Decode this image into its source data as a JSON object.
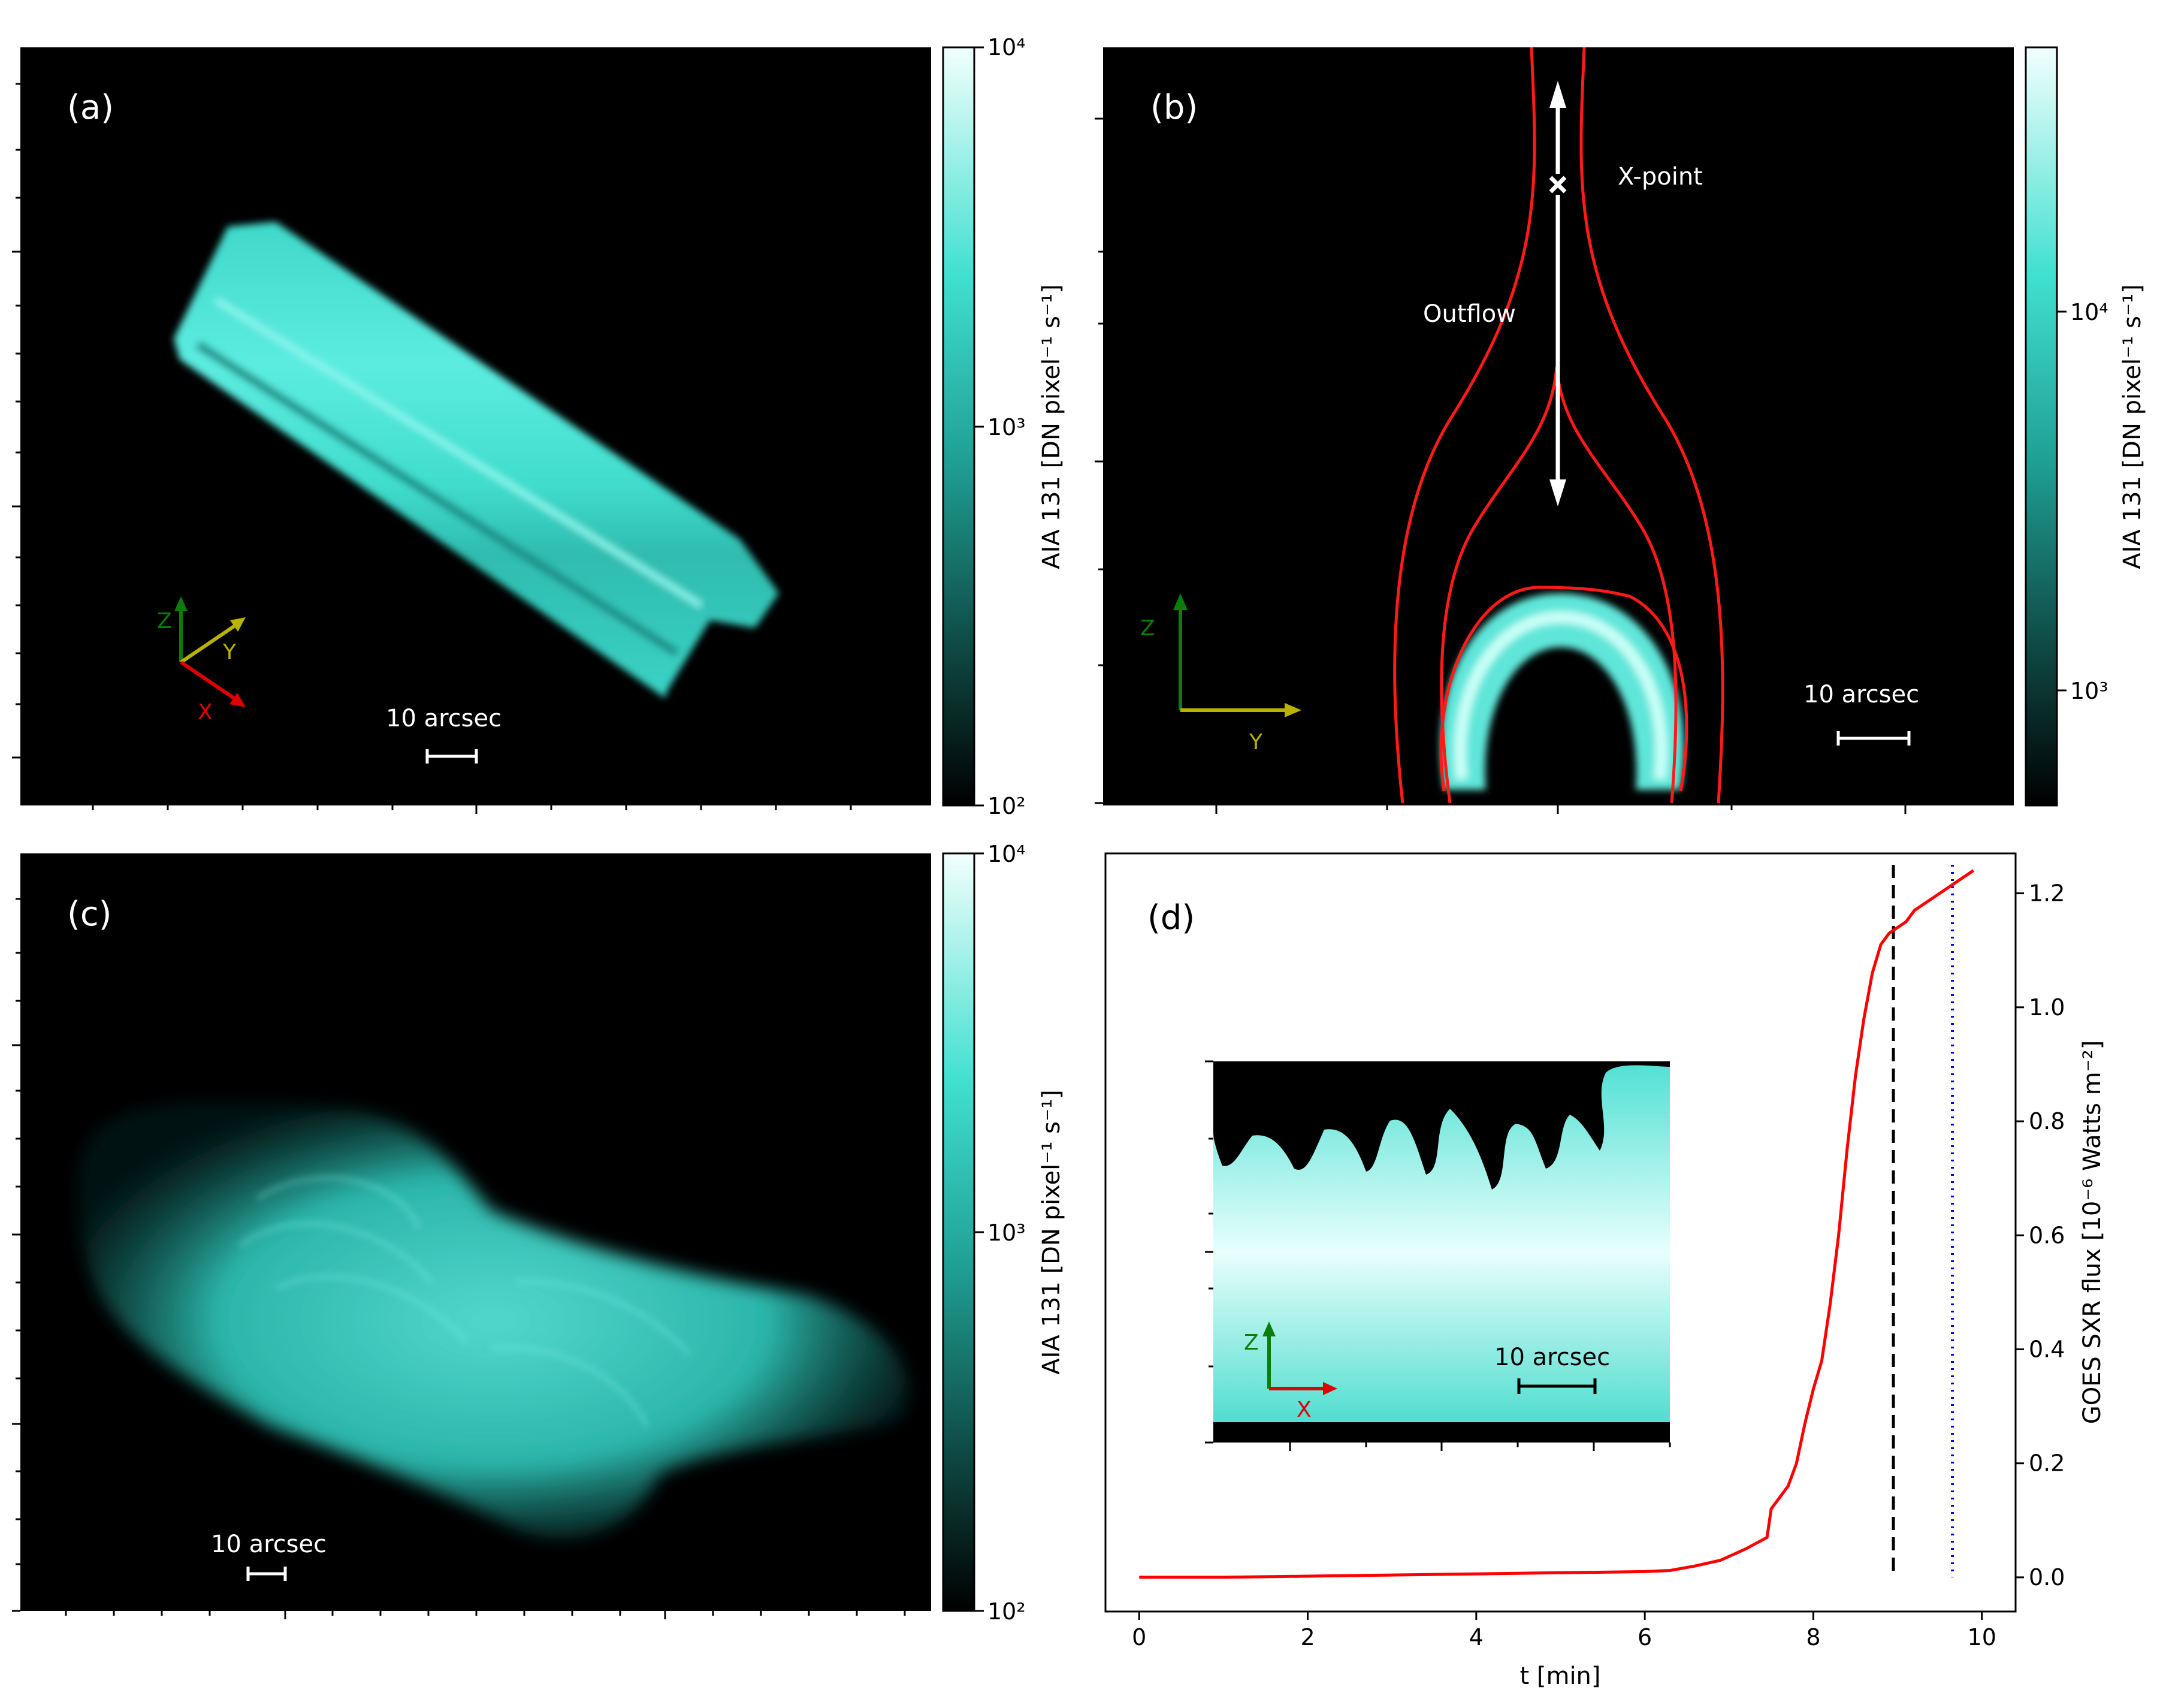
{
  "panels": {
    "a": {
      "label": "(a)",
      "scale_bar": "10 arcsec",
      "axes": {
        "z": "Z",
        "y": "Y",
        "x": "X"
      },
      "colorbar": {
        "label": "AIA 131 [DN pixel⁻¹ s⁻¹]",
        "ticks": [
          "10⁴",
          "10³",
          "10²"
        ]
      }
    },
    "b": {
      "label": "(b)",
      "scale_bar": "10 arcsec",
      "annotations": {
        "xpoint": "X-point",
        "outflow": "Outflow"
      },
      "axes": {
        "z": "Z",
        "y": "Y"
      },
      "colorbar": {
        "label": "AIA 131 [DN pixel⁻¹ s⁻¹]",
        "ticks": [
          "10⁴",
          "10³"
        ]
      }
    },
    "c": {
      "label": "(c)",
      "scale_bar": "10 arcsec",
      "colorbar": {
        "label": "AIA 131 [DN pixel⁻¹ s⁻¹]",
        "ticks": [
          "10⁴",
          "10³",
          "10²"
        ]
      }
    },
    "d": {
      "label": "(d)",
      "inset": {
        "scale_bar": "10 arcsec",
        "axes": {
          "z": "Z",
          "x": "X"
        }
      }
    }
  },
  "colors": {
    "cyan": "#40e0d0",
    "curve": "#ff0000",
    "dashed": "#000000",
    "dotted": "#0000ff"
  },
  "chart_data": {
    "type": "line",
    "title": "",
    "xlabel": "t [min]",
    "ylabel": "GOES SXR flux [10⁻⁶ Watts m⁻²]",
    "xlim": [
      -0.4,
      10.4
    ],
    "ylim": [
      -0.06,
      1.27
    ],
    "xticks": [
      0,
      2,
      4,
      6,
      8,
      10
    ],
    "yticks": [
      0.0,
      0.2,
      0.4,
      0.6,
      0.8,
      1.0,
      1.2
    ],
    "series": [
      {
        "x": [
          0,
          1,
          2,
          3,
          4,
          5,
          6,
          6.3,
          6.6,
          6.9,
          7.2,
          7.45,
          7.5,
          7.6,
          7.7,
          7.8,
          7.9,
          8.0,
          8.1,
          8.2,
          8.3,
          8.4,
          8.5,
          8.6,
          8.7,
          8.8,
          8.9,
          9.0,
          9.1,
          9.2,
          9.3,
          9.5,
          9.7,
          9.9
        ],
        "y": [
          0.0,
          0.0,
          0.002,
          0.004,
          0.006,
          0.008,
          0.01,
          0.012,
          0.02,
          0.03,
          0.05,
          0.07,
          0.12,
          0.14,
          0.16,
          0.2,
          0.27,
          0.33,
          0.38,
          0.48,
          0.6,
          0.75,
          0.88,
          0.98,
          1.06,
          1.11,
          1.13,
          1.14,
          1.15,
          1.17,
          1.18,
          1.2,
          1.22,
          1.24
        ]
      }
    ],
    "vlines": [
      {
        "x": 8.95,
        "style": "dashed"
      },
      {
        "x": 9.65,
        "style": "dotted"
      }
    ]
  }
}
